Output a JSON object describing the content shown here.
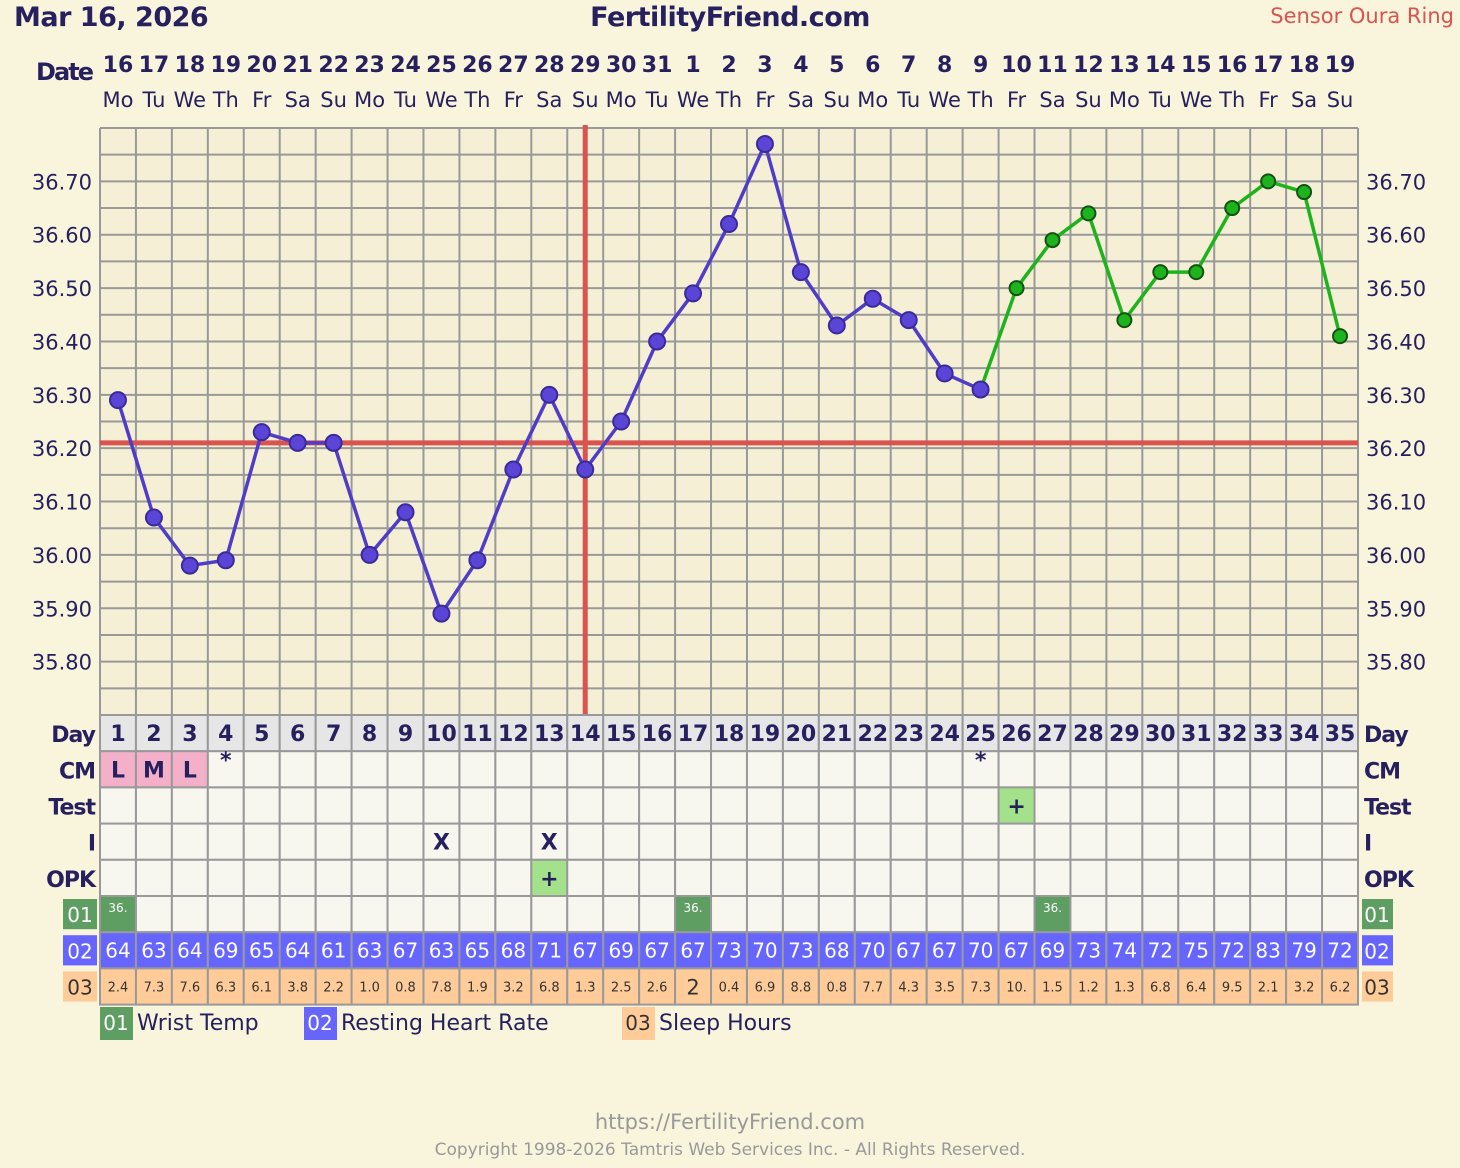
{
  "header": {
    "date": "Mar 16, 2026",
    "site": "FertilityFriend.com",
    "sensor": "Sensor Oura Ring"
  },
  "chart_data": {
    "type": "line",
    "date_label": "Date",
    "dates": [
      "16",
      "17",
      "18",
      "19",
      "20",
      "21",
      "22",
      "23",
      "24",
      "25",
      "26",
      "27",
      "28",
      "29",
      "30",
      "31",
      "1",
      "2",
      "3",
      "4",
      "5",
      "6",
      "7",
      "8",
      "9",
      "10",
      "11",
      "12",
      "13",
      "14",
      "15",
      "16",
      "17",
      "18",
      "19"
    ],
    "weekdays": [
      "Mo",
      "Tu",
      "We",
      "Th",
      "Fr",
      "Sa",
      "Su",
      "Mo",
      "Tu",
      "We",
      "Th",
      "Fr",
      "Sa",
      "Su",
      "Mo",
      "Tu",
      "We",
      "Th",
      "Fr",
      "Sa",
      "Su",
      "Mo",
      "Tu",
      "We",
      "Th",
      "Fr",
      "Sa",
      "Su",
      "Mo",
      "Tu",
      "We",
      "Th",
      "Fr",
      "Sa",
      "Su"
    ],
    "days": [
      "1",
      "2",
      "3",
      "4",
      "5",
      "6",
      "7",
      "8",
      "9",
      "10",
      "11",
      "12",
      "13",
      "14",
      "15",
      "16",
      "17",
      "18",
      "19",
      "20",
      "21",
      "22",
      "23",
      "24",
      "25",
      "26",
      "27",
      "28",
      "29",
      "30",
      "31",
      "32",
      "33",
      "34",
      "35"
    ],
    "temps": [
      36.29,
      36.07,
      35.98,
      35.99,
      36.23,
      36.21,
      36.21,
      36.0,
      36.08,
      35.89,
      35.99,
      36.16,
      36.3,
      36.16,
      36.25,
      36.4,
      36.49,
      36.62,
      36.77,
      36.53,
      36.43,
      36.48,
      36.44,
      36.34,
      36.31,
      36.5,
      36.59,
      36.64,
      36.44,
      36.53,
      36.53,
      36.65,
      36.7,
      36.68,
      36.41
    ],
    "ylim": [
      35.7,
      36.8
    ],
    "ytick_labels": [
      "36.70",
      "36.60",
      "36.50",
      "36.40",
      "36.30",
      "36.20",
      "36.10",
      "36.00",
      "35.90",
      "35.80"
    ],
    "grid": true,
    "coverline": 36.21,
    "ovulation_day": 14,
    "sensor_from_day": 26,
    "colors": {
      "line": "#4f3dc8",
      "point": "#5b45d6",
      "sensor_line": "#1db31d",
      "coverline": "#d9534f",
      "ovulation": "#d9534f"
    }
  },
  "rows": {
    "day_label": "Day",
    "cm": {
      "label": "CM",
      "values": [
        "L",
        "M",
        "L",
        "*",
        "",
        "",
        "",
        "",
        "",
        "",
        "",
        "",
        "",
        "",
        "",
        "",
        "",
        "",
        "",
        "",
        "",
        "",
        "",
        "",
        "*",
        "",
        "",
        "",
        "",
        "",
        "",
        "",
        "",
        "",
        ""
      ]
    },
    "test": {
      "label": "Test",
      "values": [
        "",
        "",
        "",
        "",
        "",
        "",
        "",
        "",
        "",
        "",
        "",
        "",
        "",
        "",
        "",
        "",
        "",
        "",
        "",
        "",
        "",
        "",
        "",
        "",
        "",
        "+",
        "",
        "",
        "",
        "",
        "",
        "",
        "",
        "",
        ""
      ]
    },
    "intercourse": {
      "label": "I",
      "values": [
        "",
        "",
        "",
        "",
        "",
        "",
        "",
        "",
        "",
        "X",
        "",
        "",
        "X",
        "",
        "",
        "",
        "",
        "",
        "",
        "",
        "",
        "",
        "",
        "",
        "",
        "",
        "",
        "",
        "",
        "",
        "",
        "",
        "",
        "",
        ""
      ]
    },
    "opk": {
      "label": "OPK",
      "values": [
        "",
        "",
        "",
        "",
        "",
        "",
        "",
        "",
        "",
        "",
        "",
        "",
        "+",
        "",
        "",
        "",
        "",
        "",
        "",
        "",
        "",
        "",
        "",
        "",
        "",
        "",
        "",
        "",
        "",
        "",
        "",
        "",
        "",
        "",
        ""
      ]
    },
    "wrist": {
      "label": "01",
      "values": [
        "36.",
        "",
        "",
        "",
        "",
        "",
        "",
        "",
        "",
        "",
        "",
        "",
        "",
        "",
        "",
        "",
        "36.",
        "",
        "",
        "",
        "",
        "",
        "",
        "",
        "",
        "",
        "36.",
        "",
        "",
        "",
        "",
        "",
        "",
        "",
        ""
      ]
    },
    "rhr": {
      "label": "02",
      "values": [
        "64",
        "63",
        "64",
        "69",
        "65",
        "64",
        "61",
        "63",
        "67",
        "63",
        "65",
        "68",
        "71",
        "67",
        "69",
        "67",
        "67",
        "73",
        "70",
        "73",
        "68",
        "70",
        "67",
        "67",
        "70",
        "67",
        "69",
        "73",
        "74",
        "72",
        "75",
        "72",
        "83",
        "79",
        "72"
      ]
    },
    "sleep": {
      "label": "03",
      "values": [
        "2.4",
        "7.3",
        "7.6",
        "6.3",
        "6.1",
        "3.8",
        "2.2",
        "1.0",
        "0.8",
        "7.8",
        "1.9",
        "3.2",
        "6.8",
        "1.3",
        "2.5",
        "2.6",
        "2",
        "0.4",
        "6.9",
        "8.8",
        "0.8",
        "7.7",
        "4.3",
        "3.5",
        "7.3",
        "10.",
        "1.5",
        "1.2",
        "1.3",
        "6.8",
        "6.4",
        "9.5",
        "2.1",
        "3.2",
        "6.2"
      ]
    }
  },
  "legend": [
    {
      "code": "01",
      "label": "Wrist Temp",
      "color": "#5f9e62"
    },
    {
      "code": "02",
      "label": "Resting Heart Rate",
      "color": "#6666ff"
    },
    {
      "code": "03",
      "label": "Sleep Hours",
      "color": "#ffcc99"
    }
  ],
  "footer": {
    "url": "https://FertilityFriend.com",
    "copyright": "Copyright 1998-2026 Tamtris Web Services Inc. - All Rights Reserved."
  }
}
